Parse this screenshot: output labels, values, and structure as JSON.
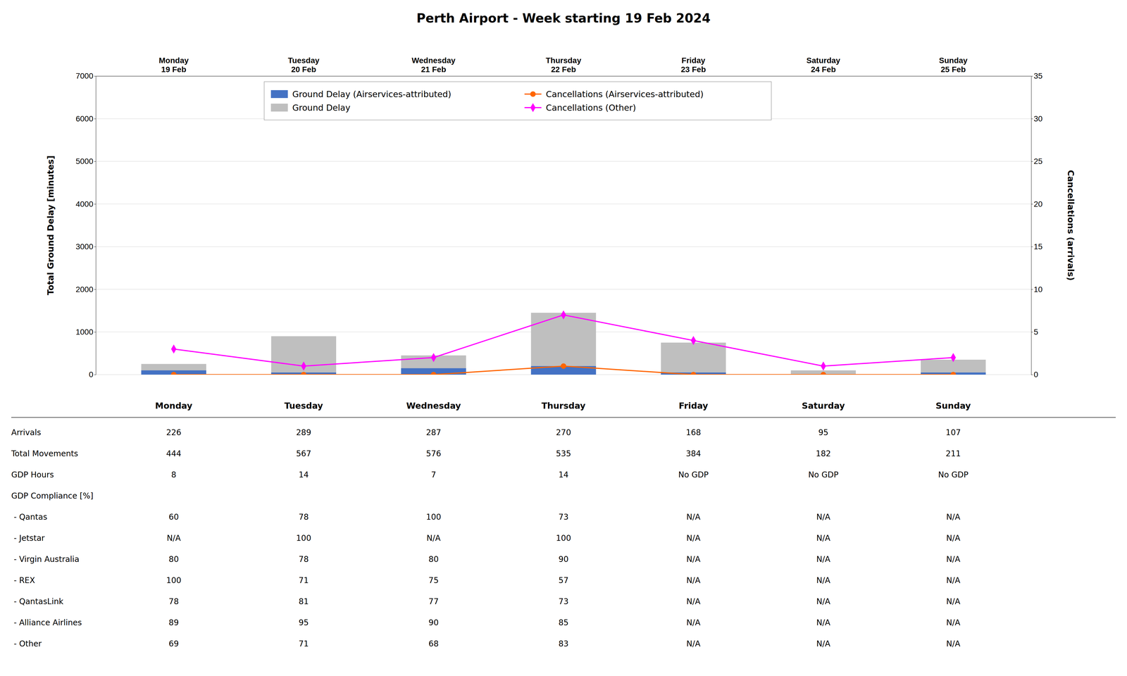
{
  "chart_data": {
    "type": "bar",
    "title": "Perth Airport - Week starting 19 Feb 2024",
    "categories": [
      "Monday\n19 Feb",
      "Tuesday\n20 Feb",
      "Wednesday\n21 Feb",
      "Thursday\n22 Feb",
      "Friday\n23 Feb",
      "Saturday\n24 Feb",
      "Sunday\n25 Feb"
    ],
    "series": [
      {
        "name": "Ground Delay (Airservices-attributed)",
        "type": "bar",
        "color": "#4472C4",
        "values": [
          100,
          50,
          150,
          200,
          50,
          0,
          50
        ]
      },
      {
        "name": "Ground Delay",
        "type": "bar",
        "color": "#BFBFBF",
        "values": [
          250,
          900,
          450,
          1450,
          750,
          100,
          350
        ]
      },
      {
        "name": "Cancellations (Airservices-attributed)",
        "type": "line",
        "axis": "y2",
        "color": "#FF6600",
        "marker": "circle",
        "values": [
          0,
          0,
          0,
          1,
          0,
          0,
          0
        ]
      },
      {
        "name": "Cancellations (Other)",
        "type": "line",
        "axis": "y2",
        "color": "#FF00FF",
        "marker": "diamond",
        "values": [
          3,
          1,
          2,
          7,
          4,
          1,
          2
        ]
      }
    ],
    "ylabel": "Total Ground Delay [minutes]",
    "y2label": "Cancellations (arrivals)",
    "ylim": [
      0,
      7000
    ],
    "yticks": [
      0,
      1000,
      2000,
      3000,
      4000,
      5000,
      6000,
      7000
    ],
    "y2lim": [
      0,
      35
    ],
    "y2ticks": [
      0,
      5,
      10,
      15,
      20,
      25,
      30,
      35
    ],
    "grid": true,
    "legend": "upper left",
    "stacked": false,
    "table": {
      "columns": [
        "Monday",
        "Tuesday",
        "Wednesday",
        "Thursday",
        "Friday",
        "Saturday",
        "Sunday"
      ],
      "rows": [
        "Arrivals",
        "Total Movements",
        "GDP Hours",
        "GDP Compliance [%]",
        " - Qantas",
        " - Jetstar",
        " - Virgin Australia",
        " - REX",
        " - QantasLink",
        " - Alliance Airlines",
        " - Other"
      ],
      "cells": [
        [
          "226",
          "289",
          "287",
          "270",
          "168",
          "95",
          "107"
        ],
        [
          "444",
          "567",
          "576",
          "535",
          "384",
          "182",
          "211"
        ],
        [
          "8",
          "14",
          "7",
          "14",
          "No GDP",
          "No GDP",
          "No GDP"
        ],
        [
          null,
          null,
          null,
          null,
          null,
          null,
          null
        ],
        [
          "60",
          "78",
          "100",
          "73",
          "N/A",
          "N/A",
          "N/A"
        ],
        [
          "N/A",
          "100",
          "N/A",
          "100",
          "N/A",
          "N/A",
          "N/A"
        ],
        [
          "80",
          "78",
          "80",
          "90",
          "N/A",
          "N/A",
          "N/A"
        ],
        [
          "100",
          "71",
          "75",
          "57",
          "N/A",
          "N/A",
          "N/A"
        ],
        [
          "78",
          "81",
          "77",
          "73",
          "N/A",
          "N/A",
          "N/A"
        ],
        [
          "89",
          "95",
          "90",
          "85",
          "N/A",
          "N/A",
          "N/A"
        ],
        [
          "69",
          "71",
          "68",
          "83",
          "N/A",
          "N/A",
          "N/A"
        ]
      ]
    }
  }
}
